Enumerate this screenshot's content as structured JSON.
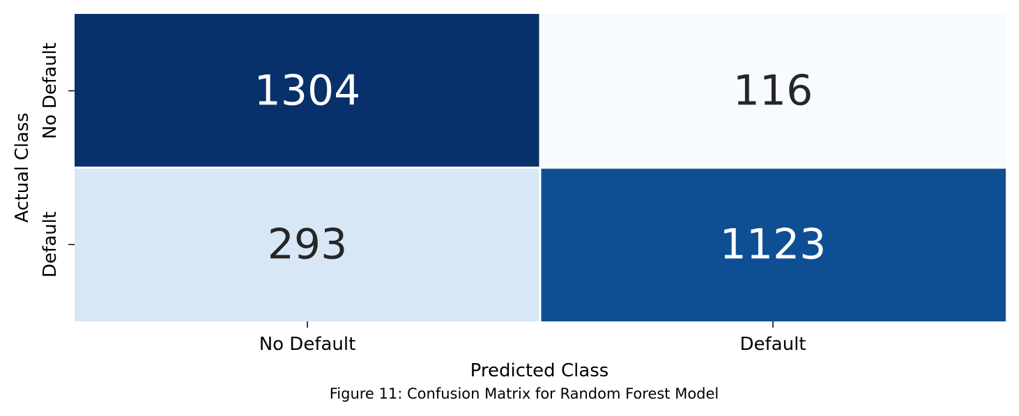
{
  "chart_data": {
    "type": "heatmap",
    "x_categories": [
      "No Default",
      "Default"
    ],
    "y_categories": [
      "No Default",
      "Default"
    ],
    "values": [
      [
        1304,
        116
      ],
      [
        293,
        1123
      ]
    ],
    "xlabel": "Predicted Class",
    "ylabel": "Actual Class",
    "colormap": "Blues",
    "colorbar": false,
    "colors": {
      "low": "#f7fbff",
      "mid_low": "#d8e7f5",
      "mid": "#6baed6",
      "mid_high": "#1059a1",
      "high": "#08306b",
      "text_dark": "#262626",
      "text_light": "#ffffff"
    }
  },
  "caption": "Figure 11: Confusion Matrix for Random Forest Model"
}
